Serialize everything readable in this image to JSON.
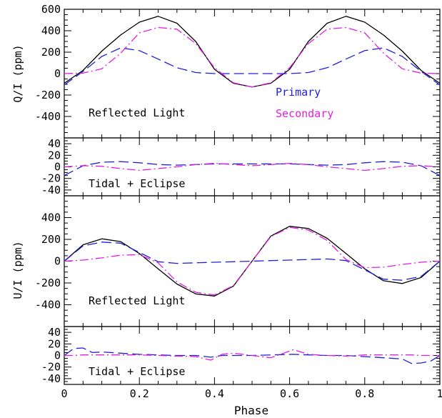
{
  "figure": {
    "xlabel": "Phase",
    "qlabel": "Q/I (ppm)",
    "ulabel": "U/I (ppm)"
  },
  "legend": {
    "primary": "Primary",
    "secondary": "Secondary",
    "primary_color": "#1f1fdc",
    "secondary_color": "#e020e0",
    "total_color": "#000000"
  },
  "chart_data": [
    {
      "type": "line",
      "panel": "Q reflected",
      "annotation": "Reflected Light",
      "ylabel": "Q/I (ppm)",
      "xlim": [
        0,
        1
      ],
      "ylim": [
        -600,
        600
      ],
      "yticks": [
        -400,
        -200,
        0,
        200,
        400,
        600
      ],
      "xticks": [
        0,
        0.2,
        0.4,
        0.6,
        0.8,
        1
      ],
      "x": [
        0,
        0.05,
        0.1,
        0.15,
        0.2,
        0.25,
        0.3,
        0.35,
        0.4,
        0.45,
        0.5,
        0.55,
        0.6,
        0.65,
        0.7,
        0.75,
        0.8,
        0.85,
        0.9,
        0.95,
        1
      ],
      "series": [
        {
          "role": "total",
          "values": [
            -90,
            30,
            210,
            360,
            480,
            535,
            470,
            300,
            40,
            -90,
            -125,
            -90,
            40,
            300,
            470,
            535,
            480,
            360,
            210,
            30,
            -90
          ]
        },
        {
          "name": "Primary",
          "values": [
            -105,
            20,
            160,
            240,
            215,
            135,
            55,
            10,
            0,
            0,
            0,
            0,
            0,
            10,
            55,
            135,
            215,
            240,
            160,
            20,
            -105
          ]
        },
        {
          "name": "Secondary",
          "values": [
            0,
            5,
            45,
            190,
            380,
            430,
            415,
            280,
            55,
            -85,
            -125,
            -85,
            55,
            280,
            415,
            430,
            380,
            190,
            45,
            5,
            0
          ]
        }
      ]
    },
    {
      "type": "line",
      "panel": "Q tidal",
      "annotation": "Tidal + Eclipse",
      "xlim": [
        0,
        1
      ],
      "ylim": [
        -50,
        50
      ],
      "yticks": [
        -40,
        -20,
        0,
        20,
        40
      ],
      "xticks": [
        0,
        0.2,
        0.4,
        0.6,
        0.8,
        1
      ],
      "x": [
        0,
        0.05,
        0.1,
        0.15,
        0.2,
        0.25,
        0.3,
        0.35,
        0.4,
        0.45,
        0.5,
        0.55,
        0.6,
        0.65,
        0.7,
        0.75,
        0.8,
        0.85,
        0.9,
        0.95,
        1
      ],
      "series": [
        {
          "name": "Primary",
          "values": [
            -15,
            2,
            8,
            9,
            7,
            4,
            3,
            4,
            5,
            5,
            5,
            5,
            5,
            4,
            3,
            4,
            7,
            9,
            8,
            2,
            -15
          ]
        },
        {
          "name": "Secondary",
          "values": [
            0,
            2,
            1,
            -3,
            -6,
            -3,
            0,
            4,
            6,
            4,
            2,
            4,
            6,
            4,
            0,
            -3,
            -6,
            -3,
            1,
            2,
            0
          ]
        }
      ]
    },
    {
      "type": "line",
      "panel": "U reflected",
      "annotation": "Reflected Light",
      "ylabel": "U/I (ppm)",
      "xlim": [
        0,
        1
      ],
      "ylim": [
        -600,
        600
      ],
      "yticks": [
        -400,
        -200,
        0,
        200,
        400
      ],
      "xticks": [
        0,
        0.2,
        0.4,
        0.6,
        0.8,
        1
      ],
      "x": [
        0,
        0.05,
        0.1,
        0.15,
        0.2,
        0.25,
        0.3,
        0.35,
        0.4,
        0.45,
        0.5,
        0.55,
        0.6,
        0.65,
        0.7,
        0.75,
        0.8,
        0.85,
        0.9,
        0.95,
        1
      ],
      "series": [
        {
          "role": "total",
          "values": [
            0,
            150,
            205,
            180,
            70,
            -70,
            -210,
            -300,
            -320,
            -230,
            0,
            230,
            320,
            300,
            210,
            70,
            -70,
            -180,
            -205,
            -150,
            0
          ]
        },
        {
          "name": "Primary",
          "values": [
            0,
            140,
            175,
            165,
            80,
            -5,
            -20,
            -15,
            -10,
            -5,
            0,
            5,
            10,
            15,
            20,
            5,
            -80,
            -165,
            -175,
            -140,
            0
          ]
        },
        {
          "name": "Secondary",
          "values": [
            0,
            10,
            30,
            55,
            60,
            -15,
            -190,
            -285,
            -310,
            -225,
            0,
            225,
            310,
            285,
            190,
            15,
            -60,
            -55,
            -30,
            -10,
            0
          ]
        }
      ]
    },
    {
      "type": "line",
      "panel": "U tidal",
      "annotation": "Tidal + Eclipse",
      "xlim": [
        0,
        1
      ],
      "ylim": [
        -50,
        50
      ],
      "yticks": [
        -40,
        -20,
        0,
        20,
        40
      ],
      "xticks": [
        0,
        0.2,
        0.4,
        0.6,
        0.8,
        1
      ],
      "xlabel": "Phase",
      "x": [
        0,
        0.025,
        0.05,
        0.075,
        0.1,
        0.15,
        0.2,
        0.25,
        0.3,
        0.35,
        0.39,
        0.42,
        0.45,
        0.5,
        0.55,
        0.61,
        0.65,
        0.7,
        0.75,
        0.8,
        0.85,
        0.9,
        0.925,
        0.95,
        0.975,
        1
      ],
      "series": [
        {
          "name": "Primary",
          "values": [
            0,
            12,
            13,
            5,
            6,
            4,
            2,
            1,
            0,
            0,
            -3,
            0,
            0,
            0,
            1,
            2,
            1,
            0,
            0,
            -2,
            -4,
            -6,
            -14,
            -13,
            -10,
            0
          ]
        },
        {
          "name": "Secondary",
          "values": [
            0,
            0,
            1,
            1,
            1,
            1,
            1,
            0,
            -1,
            -2,
            -8,
            2,
            4,
            0,
            -4,
            10,
            2,
            0,
            -1,
            1,
            1,
            1,
            1,
            0,
            0,
            0
          ]
        }
      ]
    }
  ]
}
